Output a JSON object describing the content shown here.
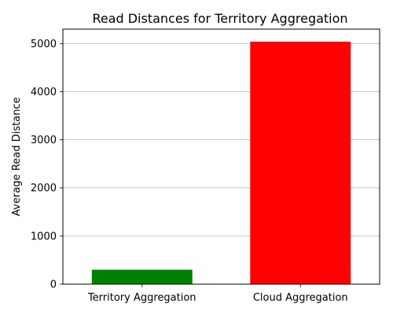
{
  "chart_data": {
    "type": "bar",
    "title": "Read Distances for Territory Aggregation",
    "xlabel": "",
    "ylabel": "Average Read Distance",
    "categories": [
      "Territory Aggregation",
      "Cloud Aggregation"
    ],
    "values": [
      300,
      5040
    ],
    "bar_colors": [
      "#008000",
      "#ff0000"
    ],
    "ylim": [
      0,
      5300
    ],
    "yticks": [
      0,
      1000,
      2000,
      3000,
      4000,
      5000
    ],
    "grid": "y-axis horizontal lines",
    "legend": "none"
  }
}
